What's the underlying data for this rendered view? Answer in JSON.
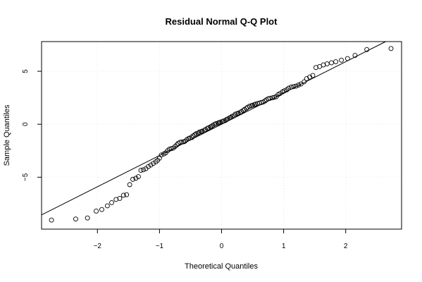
{
  "chart_data": {
    "type": "scatter",
    "title": "Residual Normal Q-Q Plot",
    "xlabel": "Theoretical Quantiles",
    "ylabel": "Sample Quantiles",
    "xlim": [
      -2.9,
      2.9
    ],
    "ylim": [
      -9.9,
      7.8
    ],
    "xticks": [
      -2,
      -1,
      0,
      1,
      2
    ],
    "yticks": [
      -5,
      0,
      5
    ],
    "grid": true,
    "reference_line": {
      "intercept": 0.0,
      "slope": 2.95
    },
    "points": [
      [
        -2.74,
        -9.05
      ],
      [
        -2.35,
        -8.95
      ],
      [
        -2.16,
        -8.85
      ],
      [
        -2.02,
        -8.2
      ],
      [
        -1.93,
        -8.05
      ],
      [
        -1.84,
        -7.7
      ],
      [
        -1.77,
        -7.4
      ],
      [
        -1.7,
        -7.1
      ],
      [
        -1.64,
        -7.0
      ],
      [
        -1.58,
        -6.7
      ],
      [
        -1.53,
        -6.65
      ],
      [
        -1.48,
        -5.7
      ],
      [
        -1.43,
        -5.2
      ],
      [
        -1.38,
        -5.1
      ],
      [
        -1.34,
        -4.95
      ],
      [
        -1.3,
        -4.35
      ],
      [
        -1.26,
        -4.3
      ],
      [
        -1.22,
        -4.2
      ],
      [
        -1.18,
        -4.0
      ],
      [
        -1.14,
        -3.85
      ],
      [
        -1.1,
        -3.7
      ],
      [
        -1.06,
        -3.55
      ],
      [
        -1.03,
        -3.4
      ],
      [
        -1.0,
        -3.2
      ],
      [
        -0.97,
        -2.9
      ],
      [
        -0.93,
        -2.8
      ],
      [
        -0.9,
        -2.7
      ],
      [
        -0.87,
        -2.5
      ],
      [
        -0.84,
        -2.35
      ],
      [
        -0.81,
        -2.3
      ],
      [
        -0.78,
        -2.25
      ],
      [
        -0.75,
        -2.1
      ],
      [
        -0.72,
        -1.95
      ],
      [
        -0.7,
        -1.8
      ],
      [
        -0.67,
        -1.7
      ],
      [
        -0.64,
        -1.68
      ],
      [
        -0.61,
        -1.65
      ],
      [
        -0.59,
        -1.6
      ],
      [
        -0.56,
        -1.45
      ],
      [
        -0.53,
        -1.35
      ],
      [
        -0.51,
        -1.3
      ],
      [
        -0.48,
        -1.25
      ],
      [
        -0.46,
        -1.1
      ],
      [
        -0.43,
        -1.0
      ],
      [
        -0.41,
        -0.9
      ],
      [
        -0.38,
        -0.85
      ],
      [
        -0.36,
        -0.75
      ],
      [
        -0.33,
        -0.7
      ],
      [
        -0.31,
        -0.65
      ],
      [
        -0.28,
        -0.6
      ],
      [
        -0.26,
        -0.5
      ],
      [
        -0.23,
        -0.4
      ],
      [
        -0.21,
        -0.35
      ],
      [
        -0.18,
        -0.25
      ],
      [
        -0.16,
        -0.2
      ],
      [
        -0.14,
        -0.1
      ],
      [
        -0.11,
        0.0
      ],
      [
        -0.09,
        0.05
      ],
      [
        -0.06,
        0.1
      ],
      [
        -0.04,
        0.15
      ],
      [
        -0.02,
        0.2
      ],
      [
        0.01,
        0.25
      ],
      [
        0.03,
        0.3
      ],
      [
        0.06,
        0.35
      ],
      [
        0.08,
        0.45
      ],
      [
        0.1,
        0.5
      ],
      [
        0.13,
        0.6
      ],
      [
        0.15,
        0.65
      ],
      [
        0.17,
        0.75
      ],
      [
        0.2,
        0.8
      ],
      [
        0.22,
        0.95
      ],
      [
        0.25,
        1.0
      ],
      [
        0.27,
        1.05
      ],
      [
        0.3,
        1.1
      ],
      [
        0.32,
        1.2
      ],
      [
        0.35,
        1.3
      ],
      [
        0.37,
        1.4
      ],
      [
        0.4,
        1.5
      ],
      [
        0.42,
        1.6
      ],
      [
        0.45,
        1.7
      ],
      [
        0.48,
        1.75
      ],
      [
        0.5,
        1.8
      ],
      [
        0.53,
        1.85
      ],
      [
        0.55,
        1.9
      ],
      [
        0.58,
        1.95
      ],
      [
        0.61,
        2.0
      ],
      [
        0.64,
        2.05
      ],
      [
        0.67,
        2.1
      ],
      [
        0.7,
        2.2
      ],
      [
        0.72,
        2.3
      ],
      [
        0.75,
        2.4
      ],
      [
        0.78,
        2.45
      ],
      [
        0.82,
        2.5
      ],
      [
        0.85,
        2.55
      ],
      [
        0.88,
        2.6
      ],
      [
        0.91,
        2.8
      ],
      [
        0.94,
        2.9
      ],
      [
        0.98,
        3.05
      ],
      [
        1.01,
        3.15
      ],
      [
        1.05,
        3.25
      ],
      [
        1.08,
        3.4
      ],
      [
        1.12,
        3.5
      ],
      [
        1.16,
        3.55
      ],
      [
        1.2,
        3.6
      ],
      [
        1.24,
        3.7
      ],
      [
        1.28,
        3.8
      ],
      [
        1.33,
        4.0
      ],
      [
        1.37,
        4.3
      ],
      [
        1.42,
        4.45
      ],
      [
        1.47,
        4.6
      ],
      [
        1.52,
        5.35
      ],
      [
        1.58,
        5.45
      ],
      [
        1.64,
        5.6
      ],
      [
        1.7,
        5.7
      ],
      [
        1.77,
        5.8
      ],
      [
        1.84,
        5.9
      ],
      [
        1.93,
        6.05
      ],
      [
        2.03,
        6.2
      ],
      [
        2.15,
        6.5
      ],
      [
        2.34,
        7.05
      ],
      [
        2.73,
        7.15
      ]
    ]
  }
}
